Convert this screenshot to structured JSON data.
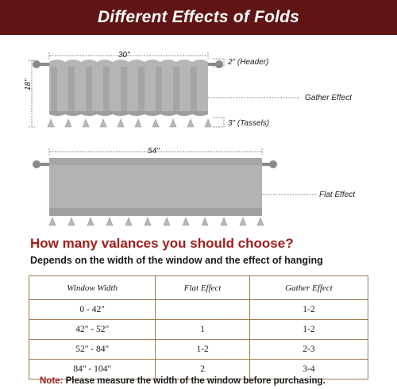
{
  "banner": {
    "title": "Different Effects of Folds"
  },
  "diagram": {
    "width_label": "30\"",
    "height_label": "18\"",
    "header_label": "2\" (Header)",
    "tassels_label": "3\" (Tassels)",
    "gather_label": "Gather Effect",
    "flat_width_label": "54\"",
    "flat_label": "Flat Effect"
  },
  "section": {
    "question": "How many valances you should choose?",
    "subtitle": "Depends on the width of the window and the effect of hanging"
  },
  "table": {
    "headers": [
      "Window Width",
      "Flat Effect",
      "Gather Effect"
    ],
    "rows": [
      [
        "0 - 42\"",
        "",
        "1-2"
      ],
      [
        "42\" - 52\"",
        "1",
        "1-2"
      ],
      [
        "52\" - 84\"",
        "1-2",
        "2-3"
      ],
      [
        "84\" - 104\"",
        "2",
        "3-4"
      ]
    ]
  },
  "note": {
    "label": "Note:",
    "text": "Please measure the width of the window before purchasing."
  },
  "colors": {
    "banner": "#5e1513",
    "accent": "#a01e1b",
    "curtain": "#b3b3b3",
    "border": "#a07a4e"
  }
}
